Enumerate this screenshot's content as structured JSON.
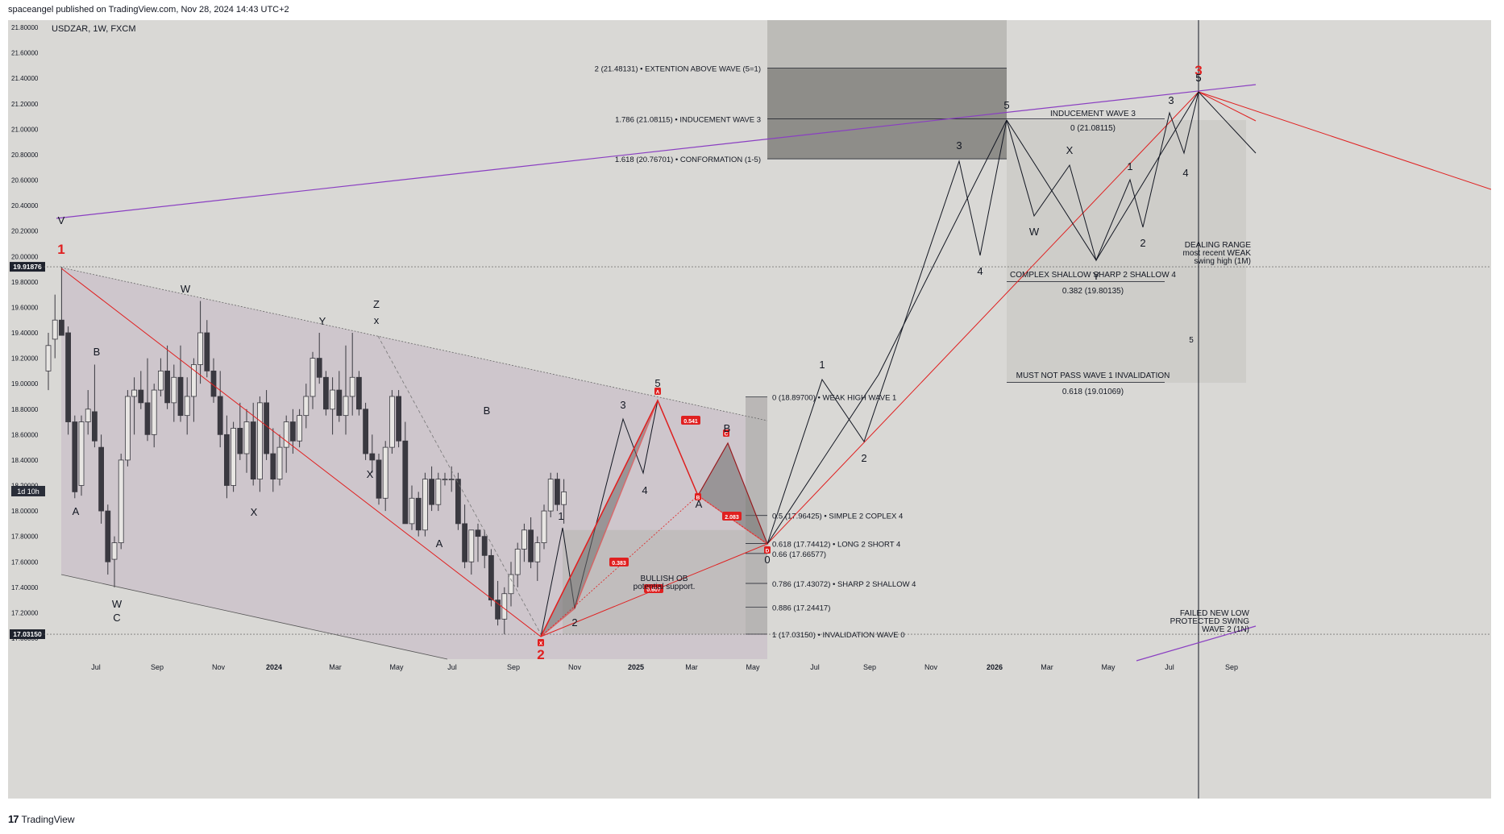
{
  "header": {
    "credit": "spaceangel published on TradingView.com, Nov 28, 2024 14:43 UTC+2"
  },
  "footer": {
    "logo_mark": "17",
    "logo_text": "TradingView"
  },
  "colors": {
    "background": "#d9d8d5",
    "bull": "#e8e6e3",
    "bear": "#3a3940",
    "channel": "#c8bec8",
    "red": "#e02020",
    "purple": "#8a3fc2",
    "grey_box": "#7a7a75",
    "dark": "#131722"
  },
  "chart_data": {
    "type": "candlestick",
    "symbol": "USDZAR, 1W, FXCM",
    "ylim": [
      16.98,
      21.96
    ],
    "y_ticks": [
      "21.80000",
      "21.60000",
      "21.40000",
      "21.20000",
      "21.00000",
      "20.80000",
      "20.60000",
      "20.40000",
      "20.20000",
      "20.00000",
      "19.80000",
      "19.60000",
      "19.40000",
      "19.20000",
      "19.00000",
      "18.80000",
      "18.60000",
      "18.40000",
      "18.20000",
      "18.00000",
      "17.80000",
      "17.60000",
      "17.40000",
      "17.20000",
      "17.00000"
    ],
    "x_ticks": [
      "Jul",
      "Sep",
      "Nov",
      "2024",
      "Mar",
      "May",
      "Jul",
      "Sep",
      "Nov",
      "2025",
      "Mar",
      "May",
      "Jul",
      "Sep",
      "Nov",
      "2026",
      "Mar",
      "May",
      "Jul",
      "Sep"
    ],
    "price_labels": [
      {
        "value": 19.91876,
        "text": "19.91876"
      },
      {
        "value": 17.0315,
        "text": "17.03150"
      }
    ],
    "countdown": "1d 10h",
    "candles_ohlc": [
      [
        19.1,
        19.4,
        18.95,
        19.3
      ],
      [
        19.35,
        19.7,
        19.2,
        19.5
      ],
      [
        19.5,
        19.91876,
        19.4,
        19.38
      ],
      [
        19.4,
        19.45,
        18.6,
        18.7
      ],
      [
        18.7,
        18.75,
        18.1,
        18.15
      ],
      [
        18.2,
        18.75,
        18.12,
        18.7
      ],
      [
        18.7,
        18.95,
        18.6,
        18.8
      ],
      [
        18.78,
        19.15,
        18.5,
        18.55
      ],
      [
        18.5,
        18.6,
        17.9,
        18.0
      ],
      [
        18.0,
        18.05,
        17.5,
        17.6
      ],
      [
        17.62,
        17.8,
        17.4,
        17.75
      ],
      [
        17.75,
        18.45,
        17.7,
        18.4
      ],
      [
        18.4,
        18.95,
        18.35,
        18.9
      ],
      [
        18.9,
        19.05,
        18.6,
        18.95
      ],
      [
        18.95,
        19.1,
        18.8,
        18.85
      ],
      [
        18.85,
        19.2,
        18.55,
        18.6
      ],
      [
        18.6,
        19.0,
        18.5,
        18.95
      ],
      [
        18.95,
        19.2,
        18.9,
        19.1
      ],
      [
        19.1,
        19.3,
        18.8,
        18.85
      ],
      [
        18.85,
        19.15,
        18.7,
        19.05
      ],
      [
        19.05,
        19.3,
        18.7,
        18.75
      ],
      [
        18.75,
        19.05,
        18.6,
        18.9
      ],
      [
        18.9,
        19.2,
        18.7,
        19.15
      ],
      [
        19.15,
        19.65,
        19.0,
        19.4
      ],
      [
        19.4,
        19.5,
        19.05,
        19.1
      ],
      [
        19.1,
        19.2,
        18.85,
        18.9
      ],
      [
        18.9,
        19.1,
        18.5,
        18.6
      ],
      [
        18.6,
        18.75,
        18.1,
        18.2
      ],
      [
        18.2,
        18.7,
        18.15,
        18.65
      ],
      [
        18.65,
        18.85,
        18.4,
        18.45
      ],
      [
        18.45,
        18.8,
        18.3,
        18.7
      ],
      [
        18.7,
        18.85,
        18.2,
        18.25
      ],
      [
        18.25,
        18.9,
        18.15,
        18.85
      ],
      [
        18.85,
        18.95,
        18.4,
        18.45
      ],
      [
        18.45,
        18.65,
        18.15,
        18.25
      ],
      [
        18.25,
        18.6,
        18.2,
        18.5
      ],
      [
        18.5,
        18.75,
        18.3,
        18.7
      ],
      [
        18.7,
        18.8,
        18.45,
        18.55
      ],
      [
        18.55,
        18.8,
        18.5,
        18.75
      ],
      [
        18.75,
        19.0,
        18.65,
        18.9
      ],
      [
        18.9,
        19.25,
        18.8,
        19.2
      ],
      [
        19.2,
        19.4,
        19.0,
        19.05
      ],
      [
        19.05,
        19.1,
        18.75,
        18.8
      ],
      [
        18.8,
        19.05,
        18.6,
        18.95
      ],
      [
        18.95,
        19.1,
        18.7,
        18.75
      ],
      [
        18.75,
        19.3,
        18.6,
        18.9
      ],
      [
        18.9,
        19.4,
        18.75,
        19.05
      ],
      [
        19.05,
        19.1,
        18.75,
        18.8
      ],
      [
        18.8,
        18.85,
        18.4,
        18.45
      ],
      [
        18.45,
        18.6,
        18.3,
        18.4
      ],
      [
        18.4,
        18.45,
        18.05,
        18.1
      ],
      [
        18.1,
        18.55,
        18.0,
        18.5
      ],
      [
        18.5,
        18.95,
        18.45,
        18.9
      ],
      [
        18.9,
        18.95,
        18.5,
        18.55
      ],
      [
        18.55,
        18.7,
        17.9,
        17.9
      ],
      [
        17.9,
        18.2,
        17.85,
        18.1
      ],
      [
        18.1,
        18.15,
        17.8,
        17.85
      ],
      [
        17.85,
        18.3,
        17.8,
        18.25
      ],
      [
        18.25,
        18.35,
        18.0,
        18.05
      ],
      [
        18.05,
        18.3,
        18.0,
        18.25
      ],
      [
        18.25,
        18.3,
        18.2,
        18.25
      ],
      [
        18.25,
        18.35,
        18.15,
        18.25
      ],
      [
        18.25,
        18.3,
        17.85,
        17.9
      ],
      [
        17.9,
        18.05,
        17.55,
        17.6
      ],
      [
        17.6,
        17.85,
        17.5,
        17.85
      ],
      [
        17.85,
        17.9,
        17.6,
        17.8
      ],
      [
        17.8,
        17.85,
        17.55,
        17.65
      ],
      [
        17.65,
        17.7,
        17.25,
        17.3
      ],
      [
        17.3,
        17.45,
        17.1,
        17.15
      ],
      [
        17.15,
        17.4,
        17.03,
        17.35
      ],
      [
        17.35,
        17.6,
        17.25,
        17.5
      ],
      [
        17.5,
        17.75,
        17.4,
        17.7
      ],
      [
        17.7,
        17.9,
        17.6,
        17.85
      ],
      [
        17.85,
        17.95,
        17.55,
        17.6
      ],
      [
        17.6,
        17.8,
        17.45,
        17.75
      ],
      [
        17.75,
        18.05,
        17.7,
        18.0
      ],
      [
        18.0,
        18.3,
        17.95,
        18.25
      ],
      [
        18.25,
        18.3,
        18.0,
        18.05
      ],
      [
        18.05,
        18.25,
        17.9,
        18.15
      ]
    ],
    "wave_labels": [
      {
        "text": "1",
        "color": "red"
      },
      {
        "text": "2",
        "color": "red"
      },
      {
        "text": "3",
        "color": "red"
      },
      {
        "text": "5"
      },
      {
        "text": "V"
      },
      {
        "text": "W"
      },
      {
        "text": "Y"
      },
      {
        "text": "Z"
      },
      {
        "text": "x"
      },
      {
        "text": "X"
      },
      {
        "text": "X"
      },
      {
        "text": "A"
      },
      {
        "text": "B"
      },
      {
        "text": "A"
      },
      {
        "text": "B"
      },
      {
        "text": "W"
      },
      {
        "text": "C"
      },
      {
        "text": "1"
      },
      {
        "text": "2"
      },
      {
        "text": "3"
      },
      {
        "text": "4"
      },
      {
        "text": "5"
      },
      {
        "text": "B"
      },
      {
        "text": "A"
      },
      {
        "text": "0"
      },
      {
        "text": "1"
      },
      {
        "text": "2"
      },
      {
        "text": "3"
      },
      {
        "text": "4"
      },
      {
        "text": "5"
      },
      {
        "text": "X"
      },
      {
        "text": "W"
      },
      {
        "text": "Y"
      },
      {
        "text": "1"
      },
      {
        "text": "2"
      },
      {
        "text": "3"
      },
      {
        "text": "4"
      },
      {
        "text": "5"
      }
    ],
    "fib_labels_left": [
      {
        "value": 21.48131,
        "text": "2 (21.48131) • EXTENTION ABOVE WAVE (5=1)"
      },
      {
        "value": 21.08115,
        "text": "1.786 (21.08115) • INDUCEMENT WAVE 3"
      },
      {
        "value": 20.76701,
        "text": "1.618 (20.76701) • CONFORMATION (1-5)"
      }
    ],
    "fib_labels_right": [
      {
        "value": 18.897,
        "text": "0 (18.89700) • WEAK HIGH WAVE 1"
      },
      {
        "value": 17.96425,
        "text": "0.5 (17.96425) • SIMPLE 2 COPLEX 4"
      },
      {
        "value": 17.74412,
        "text": "0.618 (17.74412) • LONG 2 SHORT 4"
      },
      {
        "value": 17.66577,
        "text": "0.66 (17.66577)"
      },
      {
        "value": 17.43072,
        "text": "0.786 (17.43072) • SHARP 2 SHALLOW 4"
      },
      {
        "value": 17.24417,
        "text": "0.886 (17.24417)"
      },
      {
        "value": 17.0315,
        "text": "1 (17.03150) • INVALIDATION WAVE 0"
      }
    ],
    "right_box": {
      "title": "INDUCEMENT WAVE 3",
      "level0": "0 (21.08115)",
      "complex": "COMPLEX SHALLOW SHARP 2 SHALLOW 4",
      "level382": "0.382 (19.80135)",
      "invalid": "MUST NOT PASS WAVE 1 INVALIDATION",
      "level618": "0.618 (19.01069)"
    },
    "notes": {
      "dealing": [
        "DEALING RANGE",
        "most recent WEAK",
        "swing high (1M)"
      ],
      "failed": [
        "FAILED NEW LOW",
        "PROTECTED SWING",
        "WAVE 2 (1N)"
      ],
      "bullish": [
        "BULLISH OB",
        "potential support."
      ],
      "vertical_label": "5"
    },
    "harmonic_ratios": [
      "0.541",
      "2.083",
      "0.383",
      "0.607"
    ],
    "harmonic_points": [
      "X",
      "A",
      "B",
      "C",
      "D"
    ]
  }
}
